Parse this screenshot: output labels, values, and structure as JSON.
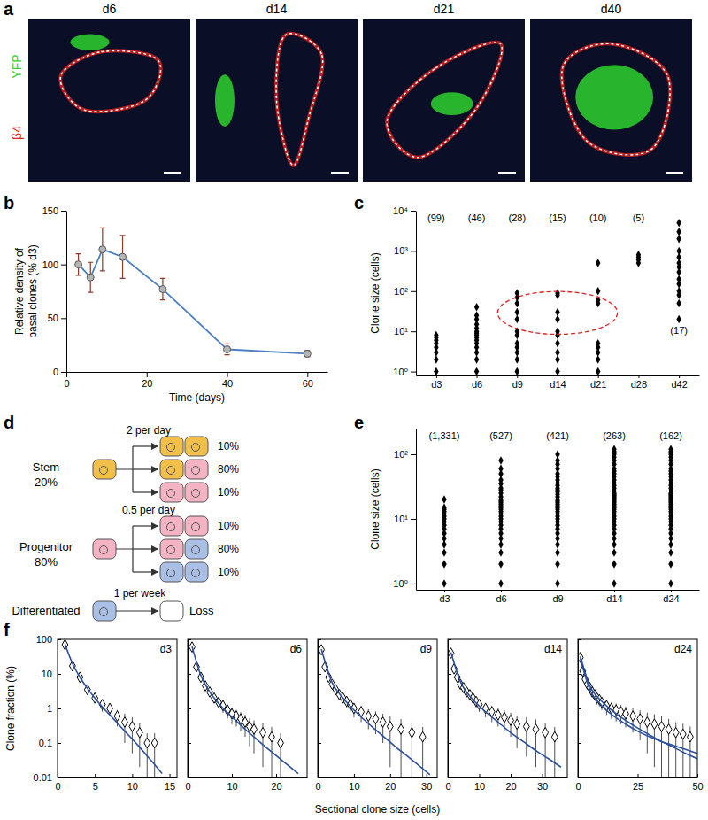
{
  "images": {
    "label": "a",
    "titles": [
      "d6",
      "d14",
      "d21",
      "d40"
    ],
    "channels": [
      {
        "name": "YFP",
        "color": "#2fd12f"
      },
      {
        "name": "β4",
        "color": "#e0201c"
      }
    ]
  },
  "diagram": {
    "label": "d",
    "populations": [
      {
        "name": "Stem",
        "share": "20%",
        "color": "#f2c04a",
        "rate": "2 per day",
        "outcomes": [
          {
            "colors": [
              "#f2c04a",
              "#f2c04a"
            ],
            "probability": "10%"
          },
          {
            "colors": [
              "#f2c04a",
              "#f3b3c3"
            ],
            "probability": "80%"
          },
          {
            "colors": [
              "#f3b3c3",
              "#f3b3c3"
            ],
            "probability": "10%"
          }
        ]
      },
      {
        "name": "Progenitor",
        "share": "80%",
        "color": "#f3b3c3",
        "rate": "0.5 per day",
        "outcomes": [
          {
            "colors": [
              "#f3b3c3",
              "#f3b3c3"
            ],
            "probability": "10%"
          },
          {
            "colors": [
              "#f3b3c3",
              "#a9bfe6"
            ],
            "probability": "80%"
          },
          {
            "colors": [
              "#a9bfe6",
              "#a9bfe6"
            ],
            "probability": "10%"
          }
        ]
      }
    ],
    "loss": {
      "name": "Differentiated",
      "color": "#a9bfe6",
      "rate": "1 per week",
      "result": "Loss",
      "result_color": "#ffffff"
    }
  },
  "chart_data": [
    {
      "type": "line",
      "label": "b",
      "x": [
        3,
        6,
        9,
        14,
        24,
        40,
        60
      ],
      "values": [
        100,
        88,
        114,
        107,
        77,
        21,
        17
      ],
      "errors": [
        10,
        14,
        20,
        20,
        10,
        5,
        3
      ],
      "xlim": [
        0,
        65
      ],
      "xticks": [
        0,
        20,
        40,
        60
      ],
      "ylim": [
        0,
        150
      ],
      "yticks": [
        0,
        50,
        100,
        150
      ],
      "xlabel": "Time (days)",
      "ylabel": [
        "Relative density of",
        "basal clones (% d3)"
      ],
      "color": "#4a7fc4",
      "marker": "circle"
    },
    {
      "type": "scatter",
      "label": "c",
      "categories": [
        "d3",
        "d6",
        "d9",
        "d14",
        "d21",
        "d28",
        "d42"
      ],
      "values": [
        [
          1,
          2,
          3,
          4,
          5,
          6,
          7,
          8
        ],
        [
          1,
          2,
          3,
          4,
          5,
          6,
          7,
          8,
          9,
          10,
          12,
          15,
          20,
          25,
          40
        ],
        [
          1,
          2,
          3,
          4,
          5,
          8,
          10,
          20,
          30,
          50,
          70,
          90
        ],
        [
          1,
          2,
          3,
          5,
          8,
          10,
          20,
          30,
          80,
          90
        ],
        [
          1,
          2,
          3,
          4,
          5,
          50,
          60,
          100,
          500
        ],
        [
          500,
          600,
          700,
          800
        ],
        [
          20,
          50,
          80,
          100,
          150,
          200,
          300,
          400,
          500,
          700,
          1000,
          2000,
          3000,
          5000
        ]
      ],
      "clone_counts": [
        99,
        46,
        28,
        15,
        10,
        5,
        17
      ],
      "clone_count_labels": [
        "(99)",
        "(46)",
        "(28)",
        "(15)",
        "(10)",
        "(5)",
        "(17)"
      ],
      "ylim": [
        0.8,
        10000
      ],
      "yticks": [
        {
          "value": 1,
          "label": "10⁰"
        },
        {
          "value": 10,
          "label": "10¹"
        },
        {
          "value": 100,
          "label": "10²"
        },
        {
          "value": 1000,
          "label": "10³"
        },
        {
          "value": 10000,
          "label": "10⁴"
        }
      ],
      "log": "y",
      "ylabel": "Clone size (cells)",
      "marker": "diamond",
      "color": "#000000"
    },
    {
      "type": "scatter",
      "label": "e",
      "categories": [
        "d3",
        "d6",
        "d9",
        "d14",
        "d24"
      ],
      "values": [
        [
          1,
          2,
          3,
          4,
          5,
          6,
          7,
          8,
          9,
          10,
          11,
          12,
          13,
          14,
          15,
          20
        ],
        [
          1,
          2,
          3,
          4,
          5,
          6,
          7,
          8,
          9,
          10,
          11,
          12,
          13,
          14,
          15,
          16,
          17,
          18,
          19,
          20,
          22,
          25,
          28,
          30,
          35,
          40,
          50,
          60,
          80
        ],
        [
          1,
          2,
          3,
          4,
          5,
          6,
          7,
          8,
          9,
          10,
          11,
          12,
          13,
          14,
          15,
          16,
          17,
          18,
          19,
          20,
          22,
          24,
          26,
          28,
          30,
          33,
          36,
          40,
          45,
          50,
          60,
          70,
          80,
          100
        ],
        [
          1,
          2,
          3,
          4,
          5,
          6,
          7,
          8,
          9,
          10,
          11,
          12,
          13,
          14,
          15,
          16,
          17,
          18,
          19,
          20,
          21,
          22,
          23,
          24,
          25,
          27,
          30,
          33,
          36,
          40,
          45,
          50,
          55,
          60,
          70,
          80,
          90,
          100,
          110,
          120
        ],
        [
          1,
          2,
          3,
          4,
          5,
          6,
          7,
          8,
          9,
          10,
          11,
          12,
          13,
          14,
          15,
          16,
          17,
          18,
          19,
          20,
          21,
          22,
          23,
          24,
          25,
          27,
          30,
          33,
          36,
          40,
          45,
          50,
          55,
          60,
          70,
          80,
          90,
          100,
          110,
          120
        ]
      ],
      "clone_counts": [
        1331,
        527,
        421,
        263,
        162
      ],
      "clone_count_labels": [
        "(1,331)",
        "(527)",
        "(421)",
        "(263)",
        "(162)"
      ],
      "ylim": [
        0.8,
        250
      ],
      "yticks": [
        {
          "value": 1,
          "label": "10⁰"
        },
        {
          "value": 10,
          "label": "10¹"
        },
        {
          "value": 100,
          "label": "10²"
        }
      ],
      "log": "y",
      "ylabel": "Clone size (cells)",
      "marker": "diamond",
      "color": "#000000"
    },
    {
      "type": "scatter",
      "label": "f",
      "title": "d3",
      "xlim": [
        0,
        16
      ],
      "xticks": [
        0,
        5,
        10,
        15
      ],
      "ylim": [
        0.01,
        100
      ],
      "yticks": [
        0.01,
        0.1,
        1,
        10,
        100
      ],
      "log": "y",
      "ylabel": "Clone fraction (%)",
      "series": [
        {
          "type": "scatter",
          "marker": "diamond",
          "color": "#000000",
          "x": [
            1,
            2,
            3,
            4,
            5,
            6,
            7,
            8,
            9,
            10,
            11,
            12,
            13
          ],
          "values": [
            70,
            17,
            8,
            3.5,
            2,
            1.3,
            1,
            0.6,
            0.4,
            0.3,
            0.2,
            0.1,
            0.1
          ],
          "errors": [
            6,
            3,
            1.5,
            0.8,
            0.6,
            0.5,
            0.4,
            0.3,
            0.3,
            0.25,
            0.18,
            0.09,
            0.09
          ]
        },
        {
          "type": "line",
          "color": "#2a4f9e",
          "x": [
            1,
            2,
            3,
            4,
            5,
            6,
            7,
            8,
            9,
            10,
            11,
            12,
            13,
            14
          ],
          "values": [
            72,
            20,
            8,
            3.8,
            2,
            1.1,
            0.65,
            0.38,
            0.22,
            0.13,
            0.075,
            0.042,
            0.024,
            0.013
          ]
        }
      ]
    },
    {
      "type": "scatter",
      "title": "d6",
      "tick_labels": "x",
      "xlim": [
        0,
        27
      ],
      "xticks": [
        0,
        10,
        20
      ],
      "ylim": [
        0.01,
        100
      ],
      "yticks": [
        0.01,
        0.1,
        1,
        10,
        100
      ],
      "log": "y",
      "series": [
        {
          "type": "scatter",
          "marker": "diamond",
          "color": "#000000",
          "x": [
            1,
            2,
            3,
            4,
            5,
            6,
            7,
            8,
            9,
            10,
            11,
            12,
            13,
            14,
            15,
            17,
            19,
            21
          ],
          "values": [
            60,
            16,
            8,
            4.5,
            3,
            2,
            1.5,
            1.2,
            0.9,
            0.7,
            0.6,
            0.5,
            0.4,
            0.3,
            0.25,
            0.2,
            0.15,
            0.1
          ],
          "errors": [
            5,
            2.5,
            1.5,
            1,
            0.8,
            0.6,
            0.5,
            0.45,
            0.4,
            0.35,
            0.3,
            0.28,
            0.25,
            0.22,
            0.2,
            0.18,
            0.14,
            0.09
          ]
        },
        {
          "type": "line",
          "color": "#2a4f9e",
          "x": [
            1,
            3,
            5,
            7,
            9,
            11,
            13,
            15,
            17,
            19,
            21,
            23,
            25
          ],
          "values": [
            62,
            9,
            3,
            1.4,
            0.75,
            0.43,
            0.25,
            0.15,
            0.09,
            0.055,
            0.034,
            0.021,
            0.013
          ]
        }
      ]
    },
    {
      "type": "scatter",
      "title": "d9",
      "tick_labels": "x",
      "xlim": [
        0,
        33
      ],
      "xticks": [
        0,
        10,
        20,
        30
      ],
      "ylim": [
        0.01,
        100
      ],
      "yticks": [
        0.01,
        0.1,
        1,
        10,
        100
      ],
      "log": "y",
      "xlabel": "Sectional clone size (cells)",
      "series": [
        {
          "type": "scatter",
          "marker": "diamond",
          "color": "#000000",
          "x": [
            1,
            2,
            3,
            4,
            5,
            6,
            7,
            8,
            9,
            10,
            12,
            14,
            16,
            18,
            20,
            23,
            26,
            29
          ],
          "values": [
            50,
            16,
            8,
            5,
            3.5,
            2.5,
            2,
            1.6,
            1.3,
            1,
            0.8,
            0.6,
            0.5,
            0.4,
            0.3,
            0.25,
            0.2,
            0.15
          ],
          "errors": [
            5,
            2.5,
            1.5,
            1,
            0.9,
            0.7,
            0.6,
            0.55,
            0.5,
            0.45,
            0.4,
            0.35,
            0.32,
            0.3,
            0.28,
            0.24,
            0.19,
            0.14
          ]
        },
        {
          "type": "line",
          "color": "#2a4f9e",
          "x": [
            1,
            4,
            7,
            10,
            13,
            16,
            19,
            22,
            25,
            28,
            31
          ],
          "values": [
            52,
            5.5,
            2,
            0.9,
            0.45,
            0.24,
            0.13,
            0.07,
            0.04,
            0.022,
            0.012
          ]
        }
      ]
    },
    {
      "type": "scatter",
      "title": "d14",
      "tick_labels": "x",
      "xlim": [
        0,
        38
      ],
      "xticks": [
        0,
        10,
        20,
        30
      ],
      "ylim": [
        0.01,
        100
      ],
      "yticks": [
        0.01,
        0.1,
        1,
        10,
        100
      ],
      "log": "y",
      "series": [
        {
          "type": "scatter",
          "marker": "diamond",
          "color": "#000000",
          "x": [
            1,
            2,
            3,
            4,
            5,
            6,
            7,
            8,
            9,
            10,
            12,
            14,
            16,
            18,
            20,
            22,
            25,
            28,
            31,
            34
          ],
          "values": [
            40,
            14,
            8,
            5,
            4,
            3,
            2.5,
            2,
            1.6,
            1.3,
            1,
            0.8,
            0.65,
            0.55,
            0.45,
            0.35,
            0.3,
            0.25,
            0.2,
            0.15
          ],
          "errors": [
            5,
            2.5,
            1.5,
            1,
            0.9,
            0.8,
            0.7,
            0.6,
            0.55,
            0.5,
            0.45,
            0.4,
            0.35,
            0.33,
            0.3,
            0.28,
            0.26,
            0.23,
            0.19,
            0.14
          ]
        },
        {
          "type": "line",
          "color": "#2a4f9e",
          "x": [
            1,
            4,
            8,
            12,
            16,
            20,
            24,
            28,
            32,
            36
          ],
          "values": [
            42,
            6,
            1.8,
            0.8,
            0.4,
            0.2,
            0.11,
            0.06,
            0.035,
            0.02
          ]
        }
      ]
    },
    {
      "type": "scatter",
      "title": "d24",
      "tick_labels": "x",
      "xlim": [
        0,
        50
      ],
      "xticks": [
        0,
        25,
        50
      ],
      "ylim": [
        0.01,
        100
      ],
      "yticks": [
        0.01,
        0.1,
        1,
        10,
        100
      ],
      "log": "y",
      "series": [
        {
          "type": "scatter",
          "marker": "diamond",
          "color": "#000000",
          "x": [
            1,
            2,
            3,
            4,
            5,
            6,
            7,
            8,
            9,
            10,
            12,
            14,
            16,
            18,
            20,
            23,
            26,
            29,
            32,
            35,
            38,
            41,
            44,
            47
          ],
          "values": [
            30,
            12,
            7,
            5,
            4,
            3,
            2.5,
            2,
            1.8,
            1.5,
            1.2,
            1,
            0.9,
            0.8,
            0.7,
            0.6,
            0.5,
            0.4,
            0.35,
            0.3,
            0.25,
            0.2,
            0.18,
            0.15
          ],
          "errors": [
            5,
            2.5,
            1.5,
            1.2,
            1,
            0.9,
            0.8,
            0.7,
            0.65,
            0.6,
            0.55,
            0.5,
            0.48,
            0.45,
            0.42,
            0.4,
            0.38,
            0.35,
            0.33,
            0.3,
            0.25,
            0.2,
            0.18,
            0.15
          ]
        },
        {
          "type": "line",
          "color": "#2a4f9e",
          "x": [
            1,
            5,
            10,
            15,
            20,
            25,
            30,
            35,
            40,
            45,
            50
          ],
          "values": [
            32,
            4.5,
            1.6,
            0.8,
            0.45,
            0.27,
            0.17,
            0.11,
            0.075,
            0.05,
            0.035
          ]
        },
        {
          "type": "line",
          "color": "#2a4f9e",
          "x": [
            1,
            5,
            10,
            15,
            20,
            25,
            30,
            35,
            40,
            45,
            50
          ],
          "values": [
            28,
            3.5,
            1.2,
            0.6,
            0.35,
            0.22,
            0.15,
            0.11,
            0.085,
            0.065,
            0.05
          ]
        }
      ]
    }
  ]
}
